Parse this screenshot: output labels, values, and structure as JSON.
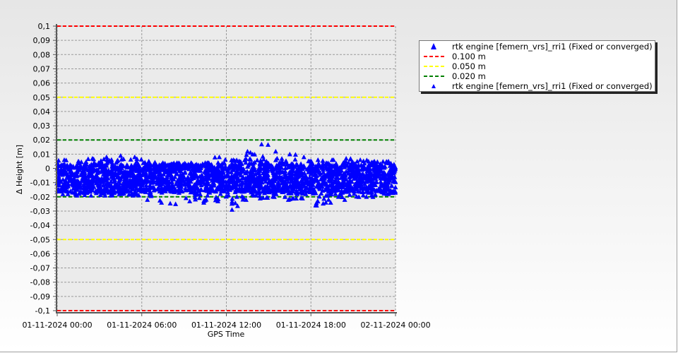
{
  "chart_data": {
    "type": "scatter",
    "xlabel": "GPS Time",
    "ylabel": "Δ Height [m]",
    "xlim": [
      "01-11-2024 00:00",
      "02-11-2024 00:00"
    ],
    "ylim": [
      -0.1,
      0.1
    ],
    "grid": true,
    "legend_placement": "right",
    "x_ticks": [
      "01-11-2024 00:00",
      "01-11-2024 06:00",
      "01-11-2024 12:00",
      "01-11-2024 18:00",
      "02-11-2024 00:00"
    ],
    "y_ticks": [
      "0,1",
      "0,09",
      "0,08",
      "0,07",
      "0,06",
      "0,05",
      "0,04",
      "0,03",
      "0,02",
      "0,01",
      "0",
      "-0,01",
      "-0,02",
      "-0,03",
      "-0,04",
      "-0,05",
      "-0,06",
      "-0,07",
      "-0,08",
      "-0,09",
      "-0,1"
    ],
    "threshold_lines": [
      {
        "name": "0.100 m",
        "value": 0.1,
        "color": "#ff0000"
      },
      {
        "name": "0.050 m",
        "value": 0.05,
        "color": "#ffff00"
      },
      {
        "name": "0.020 m",
        "value": 0.02,
        "color": "#008000"
      }
    ],
    "series": [
      {
        "name": "rtk engine [femern_vrs]_rri1 (Fixed or converged)",
        "color": "#0000ff",
        "marker": "triangle",
        "hourly_envelope": {
          "hour": [
            0,
            1,
            2,
            3,
            4,
            5,
            6,
            7,
            8,
            9,
            10,
            11,
            12,
            13,
            14,
            15,
            16,
            17,
            18,
            19,
            20,
            21,
            22,
            23
          ],
          "core_min": -0.016,
          "core_max": 0.002,
          "max": [
            0.006,
            0.005,
            0.007,
            0.008,
            0.009,
            0.008,
            0.005,
            0.004,
            0.004,
            0.004,
            0.004,
            0.008,
            0.006,
            0.012,
            0.017,
            0.012,
            0.01,
            0.008,
            0.006,
            0.006,
            0.007,
            0.006,
            0.005,
            0.005
          ],
          "min": [
            -0.018,
            -0.019,
            -0.019,
            -0.019,
            -0.018,
            -0.019,
            -0.022,
            -0.024,
            -0.025,
            -0.023,
            -0.024,
            -0.023,
            -0.029,
            -0.022,
            -0.021,
            -0.02,
            -0.022,
            -0.021,
            -0.026,
            -0.024,
            -0.022,
            -0.02,
            -0.02,
            -0.018
          ]
        }
      }
    ],
    "legend": [
      {
        "label": "rtk engine [femern_vrs]_rri1 (Fixed or converged)",
        "symbol": "triangle-large",
        "color": "#0000ff"
      },
      {
        "label": "0.100 m",
        "symbol": "dash",
        "color": "#ff0000"
      },
      {
        "label": "0.050 m",
        "symbol": "dash",
        "color": "#ffff00"
      },
      {
        "label": "0.020 m",
        "symbol": "dash",
        "color": "#008000"
      },
      {
        "label": "rtk engine [femern_vrs]_rri1 (Fixed or converged)",
        "symbol": "triangle-small",
        "color": "#0000ff"
      }
    ]
  }
}
